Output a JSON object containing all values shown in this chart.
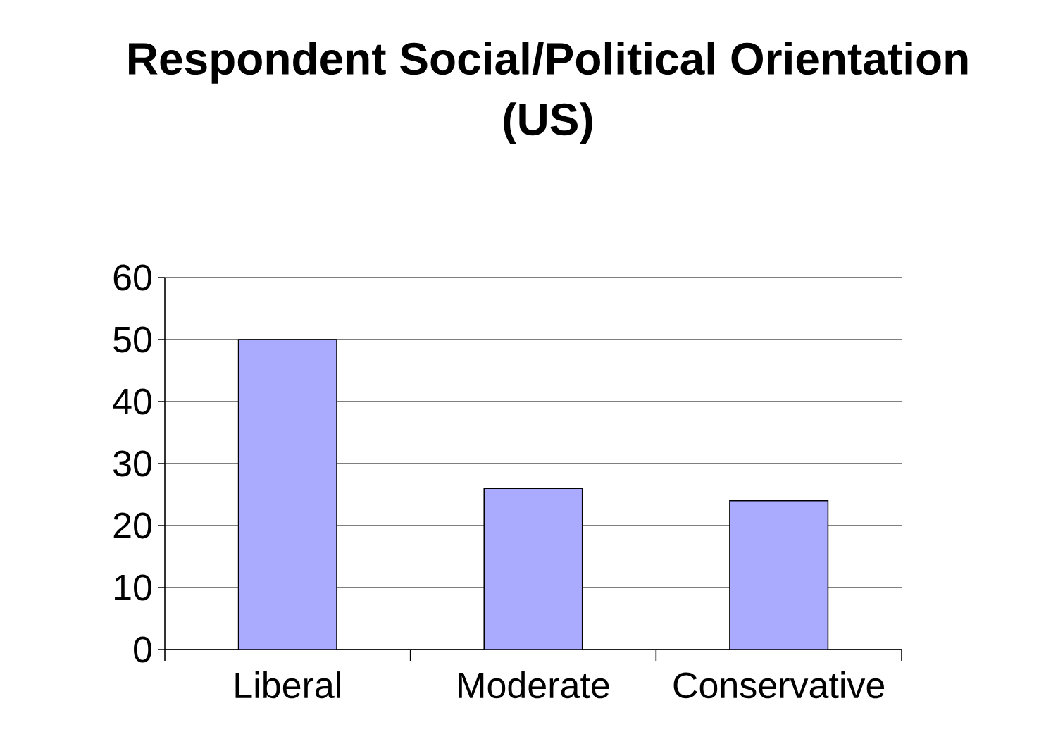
{
  "chart_data": {
    "type": "bar",
    "title": "Respondent Social/Political Orientation (US)",
    "categories": [
      "Liberal",
      "Moderate",
      "Conservative"
    ],
    "values": [
      50,
      26,
      24
    ],
    "color": "#aaaaff",
    "ylim": [
      0,
      60
    ],
    "yticks": [
      0,
      10,
      20,
      30,
      40,
      50,
      60
    ],
    "grid": "y"
  }
}
